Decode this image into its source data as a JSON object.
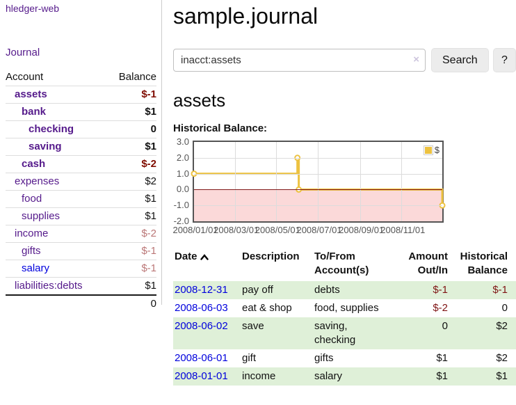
{
  "colors": {
    "link_blue": "#0000dd",
    "link_purple": "#551a8b",
    "negative_strong": "#7f0c00",
    "negative_dim": "#bb7777",
    "register_negative": "#7f1414",
    "row_stripe_green": "#dff0d8",
    "chart_line": "#edc240",
    "chart_zero_line": "#821a1a",
    "chart_negative_fill": "#fbd9d9",
    "chart_grid": "#dcdcdc",
    "chart_border": "#545454",
    "chart_text": "#545454",
    "button_bg": "#ececec",
    "divider": "#cccccc"
  },
  "sidebar": {
    "app_title": "hledger-web",
    "journal_link": "Journal",
    "accounts_table": {
      "headers": [
        "Account",
        "Balance"
      ],
      "rows": [
        {
          "account": "assets",
          "balance": "$-1",
          "depth": 1,
          "matched": true,
          "visited": true
        },
        {
          "account": "bank",
          "balance": "$1",
          "depth": 2,
          "matched": true,
          "visited": true
        },
        {
          "account": "checking",
          "balance": "0",
          "depth": 3,
          "matched": true,
          "visited": true
        },
        {
          "account": "saving",
          "balance": "$1",
          "depth": 3,
          "matched": true,
          "visited": true
        },
        {
          "account": "cash",
          "balance": "$-2",
          "depth": 2,
          "matched": true,
          "visited": true
        },
        {
          "account": "expenses",
          "balance": "$2",
          "depth": 1,
          "matched": false,
          "visited": true
        },
        {
          "account": "food",
          "balance": "$1",
          "depth": 2,
          "matched": false,
          "visited": true
        },
        {
          "account": "supplies",
          "balance": "$1",
          "depth": 2,
          "matched": false,
          "visited": true
        },
        {
          "account": "income",
          "balance": "$-2",
          "depth": 1,
          "matched": false,
          "visited": true
        },
        {
          "account": "gifts",
          "balance": "$-1",
          "depth": 2,
          "matched": false,
          "visited": true
        },
        {
          "account": "salary",
          "balance": "$-1",
          "depth": 2,
          "matched": false,
          "visited": false
        },
        {
          "account": "liabilities:debts",
          "balance": "$1",
          "depth": 1,
          "matched": false,
          "visited": true
        }
      ],
      "total": "0"
    }
  },
  "header": {
    "title": "sample.journal"
  },
  "search": {
    "value": "inacct:assets",
    "clear_icon": "×",
    "button_label": "Search",
    "help_label": "?"
  },
  "account_page": {
    "heading": "assets",
    "chart_label": "Historical Balance:"
  },
  "chart_data": {
    "type": "line",
    "title": "Historical Balance",
    "legend_label": "$",
    "legend_position": "top-right",
    "grid": true,
    "step": true,
    "ylim": [
      -2,
      3
    ],
    "xlim_days": [
      0,
      365
    ],
    "y_ticks": [
      "3.0",
      "2.0",
      "1.0",
      "0.0",
      "-1.0",
      "-2.0"
    ],
    "x_ticks": [
      {
        "label": "2008/01/01",
        "day": 0
      },
      {
        "label": "2008/03/01",
        "day": 60
      },
      {
        "label": "2008/05/01",
        "day": 121
      },
      {
        "label": "2008/07/01",
        "day": 182
      },
      {
        "label": "2008/09/01",
        "day": 244
      },
      {
        "label": "2008/11/01",
        "day": 305
      }
    ],
    "series": [
      {
        "name": "$",
        "points": [
          {
            "date": "2008-01-01",
            "day": 0,
            "value": 1
          },
          {
            "date": "2008-06-01",
            "day": 152,
            "value": 2
          },
          {
            "date": "2008-06-03",
            "day": 154,
            "value": 0
          },
          {
            "date": "2008-12-31",
            "day": 365,
            "value": -1
          }
        ]
      }
    ],
    "negative_region": true
  },
  "register_table": {
    "headers": [
      {
        "lines": [
          "Date"
        ],
        "sort": "asc",
        "align": "left"
      },
      {
        "lines": [
          "Description"
        ],
        "align": "left"
      },
      {
        "lines": [
          "To/From",
          "Account(s)"
        ],
        "align": "left"
      },
      {
        "lines": [
          "Amount",
          "Out/In"
        ],
        "align": "right"
      },
      {
        "lines": [
          "Historical",
          "Balance"
        ],
        "align": "right"
      }
    ],
    "rows": [
      {
        "date": "2008-12-31",
        "description": "pay off",
        "accounts": "debts",
        "amount": "$-1",
        "balance": "$-1"
      },
      {
        "date": "2008-06-03",
        "description": "eat & shop",
        "accounts": "food, supplies",
        "amount": "$-2",
        "balance": "0"
      },
      {
        "date": "2008-06-02",
        "description": "save",
        "accounts": "saving, checking",
        "amount": "0",
        "balance": "$2"
      },
      {
        "date": "2008-06-01",
        "description": "gift",
        "accounts": "gifts",
        "amount": "$1",
        "balance": "$2"
      },
      {
        "date": "2008-01-01",
        "description": "income",
        "accounts": "salary",
        "amount": "$1",
        "balance": "$1"
      }
    ]
  }
}
